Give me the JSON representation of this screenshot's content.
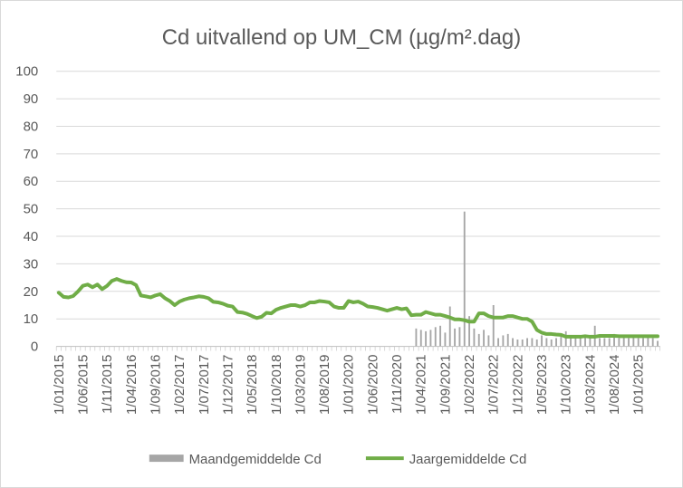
{
  "chart_data": {
    "type": "bar+line",
    "title": "Cd uitvallend op UM_CM (µg/m².dag)",
    "xlabel": "",
    "ylabel": "",
    "ylim": [
      0,
      100
    ],
    "yticks": [
      "0",
      "10",
      "20",
      "30",
      "40",
      "50",
      "60",
      "70",
      "80",
      "90",
      "100"
    ],
    "grid": true,
    "legend_position": "bottom",
    "x_start": "2015-01",
    "x_end": "2025-05",
    "x_tick_labels": [
      "1/01/2015",
      "1/06/2015",
      "1/11/2015",
      "1/04/2016",
      "1/09/2016",
      "1/02/2017",
      "1/07/2017",
      "1/12/2017",
      "1/05/2018",
      "1/10/2018",
      "1/03/2019",
      "1/08/2019",
      "1/01/2020",
      "1/06/2020",
      "1/11/2020",
      "1/04/2021",
      "1/09/2021",
      "1/02/2022",
      "1/07/2022",
      "1/12/2022",
      "1/05/2023",
      "1/10/2023",
      "1/03/2024",
      "1/08/2024",
      "1/01/2025"
    ],
    "series": [
      {
        "name": "Maandgemiddelde Cd",
        "type": "bar",
        "color": "#a6a6a6",
        "points": [
          [
            "2021-03",
            6.5
          ],
          [
            "2021-04",
            6
          ],
          [
            "2021-05",
            5.5
          ],
          [
            "2021-06",
            6
          ],
          [
            "2021-07",
            7
          ],
          [
            "2021-08",
            7.5
          ],
          [
            "2021-09",
            5
          ],
          [
            "2021-10",
            14.5
          ],
          [
            "2021-11",
            6.5
          ],
          [
            "2021-12",
            7
          ],
          [
            "2022-01",
            49
          ],
          [
            "2022-02",
            11
          ],
          [
            "2022-03",
            6.5
          ],
          [
            "2022-04",
            4.5
          ],
          [
            "2022-05",
            6
          ],
          [
            "2022-06",
            4
          ],
          [
            "2022-07",
            15
          ],
          [
            "2022-08",
            3
          ],
          [
            "2022-09",
            4
          ],
          [
            "2022-10",
            4.5
          ],
          [
            "2022-11",
            3
          ],
          [
            "2022-12",
            2.5
          ],
          [
            "2023-01",
            2.5
          ],
          [
            "2023-02",
            3
          ],
          [
            "2023-03",
            3
          ],
          [
            "2023-04",
            2.5
          ],
          [
            "2023-05",
            4
          ],
          [
            "2023-06",
            3
          ],
          [
            "2023-07",
            2.5
          ],
          [
            "2023-08",
            3
          ],
          [
            "2023-09",
            4
          ],
          [
            "2023-10",
            5.5
          ],
          [
            "2023-11",
            3
          ],
          [
            "2023-12",
            3
          ],
          [
            "2024-01",
            3
          ],
          [
            "2024-02",
            4
          ],
          [
            "2024-03",
            3
          ],
          [
            "2024-04",
            7.5
          ],
          [
            "2024-05",
            3
          ],
          [
            "2024-06",
            3
          ],
          [
            "2024-07",
            3
          ],
          [
            "2024-08",
            4.5
          ],
          [
            "2024-09",
            3
          ],
          [
            "2024-10",
            4
          ],
          [
            "2024-11",
            3
          ],
          [
            "2024-12",
            4
          ],
          [
            "2025-01",
            3
          ],
          [
            "2025-02",
            3
          ],
          [
            "2025-03",
            3.5
          ],
          [
            "2025-04",
            3
          ],
          [
            "2025-05",
            2
          ]
        ]
      },
      {
        "name": "Jaargemiddelde Cd",
        "type": "line",
        "color": "#70ad47",
        "points": [
          [
            "2015-01",
            19.5
          ],
          [
            "2015-02",
            18
          ],
          [
            "2015-03",
            17.8
          ],
          [
            "2015-04",
            18.3
          ],
          [
            "2015-05",
            20
          ],
          [
            "2015-06",
            22
          ],
          [
            "2015-07",
            22.5
          ],
          [
            "2015-08",
            21.5
          ],
          [
            "2015-09",
            22.5
          ],
          [
            "2015-10",
            20.8
          ],
          [
            "2015-11",
            22
          ],
          [
            "2015-12",
            23.8
          ],
          [
            "2016-01",
            24.5
          ],
          [
            "2016-02",
            23.8
          ],
          [
            "2016-03",
            23.3
          ],
          [
            "2016-04",
            23.2
          ],
          [
            "2016-05",
            22.3
          ],
          [
            "2016-06",
            18.5
          ],
          [
            "2016-07",
            18.2
          ],
          [
            "2016-08",
            17.8
          ],
          [
            "2016-09",
            18.5
          ],
          [
            "2016-10",
            19
          ],
          [
            "2016-11",
            17.5
          ],
          [
            "2016-12",
            16.5
          ],
          [
            "2017-01",
            15
          ],
          [
            "2017-02",
            16.3
          ],
          [
            "2017-03",
            17
          ],
          [
            "2017-04",
            17.5
          ],
          [
            "2017-05",
            17.8
          ],
          [
            "2017-06",
            18.2
          ],
          [
            "2017-07",
            18
          ],
          [
            "2017-08",
            17.5
          ],
          [
            "2017-09",
            16.2
          ],
          [
            "2017-10",
            16
          ],
          [
            "2017-11",
            15.5
          ],
          [
            "2017-12",
            14.8
          ],
          [
            "2018-01",
            14.5
          ],
          [
            "2018-02",
            12.5
          ],
          [
            "2018-03",
            12.3
          ],
          [
            "2018-04",
            11.8
          ],
          [
            "2018-05",
            11
          ],
          [
            "2018-06",
            10.3
          ],
          [
            "2018-07",
            10.8
          ],
          [
            "2018-08",
            12.2
          ],
          [
            "2018-09",
            12
          ],
          [
            "2018-10",
            13.3
          ],
          [
            "2018-11",
            14
          ],
          [
            "2018-12",
            14.5
          ],
          [
            "2019-01",
            15
          ],
          [
            "2019-02",
            15
          ],
          [
            "2019-03",
            14.5
          ],
          [
            "2019-04",
            15
          ],
          [
            "2019-05",
            16
          ],
          [
            "2019-06",
            16
          ],
          [
            "2019-07",
            16.5
          ],
          [
            "2019-08",
            16.3
          ],
          [
            "2019-09",
            16
          ],
          [
            "2019-10",
            14.5
          ],
          [
            "2019-11",
            14
          ],
          [
            "2019-12",
            14
          ],
          [
            "2020-01",
            16.5
          ],
          [
            "2020-02",
            16
          ],
          [
            "2020-03",
            16.3
          ],
          [
            "2020-04",
            15.5
          ],
          [
            "2020-05",
            14.5
          ],
          [
            "2020-06",
            14.3
          ],
          [
            "2020-07",
            14
          ],
          [
            "2020-08",
            13.5
          ],
          [
            "2020-09",
            13
          ],
          [
            "2020-10",
            13.5
          ],
          [
            "2020-11",
            14
          ],
          [
            "2020-12",
            13.5
          ],
          [
            "2021-01",
            13.8
          ],
          [
            "2021-02",
            11.3
          ],
          [
            "2021-03",
            11.5
          ],
          [
            "2021-04",
            11.5
          ],
          [
            "2021-05",
            12.5
          ],
          [
            "2021-06",
            12
          ],
          [
            "2021-07",
            11.5
          ],
          [
            "2021-08",
            11.5
          ],
          [
            "2021-09",
            11
          ],
          [
            "2021-10",
            10.5
          ],
          [
            "2021-11",
            9.8
          ],
          [
            "2021-12",
            9.8
          ],
          [
            "2022-01",
            9.5
          ],
          [
            "2022-02",
            9
          ],
          [
            "2022-03",
            9
          ],
          [
            "2022-04",
            12
          ],
          [
            "2022-05",
            12
          ],
          [
            "2022-06",
            11
          ],
          [
            "2022-07",
            10.5
          ],
          [
            "2022-08",
            10.5
          ],
          [
            "2022-09",
            10.5
          ],
          [
            "2022-10",
            11
          ],
          [
            "2022-11",
            11
          ],
          [
            "2022-12",
            10.5
          ],
          [
            "2023-01",
            10
          ],
          [
            "2023-02",
            10
          ],
          [
            "2023-03",
            9
          ],
          [
            "2023-04",
            6
          ],
          [
            "2023-05",
            5
          ],
          [
            "2023-06",
            4.5
          ],
          [
            "2023-07",
            4.5
          ],
          [
            "2023-08",
            4.3
          ],
          [
            "2023-09",
            4.2
          ],
          [
            "2023-10",
            3.5
          ],
          [
            "2023-11",
            3.5
          ],
          [
            "2023-12",
            3.5
          ],
          [
            "2024-01",
            3.5
          ],
          [
            "2024-02",
            3.7
          ],
          [
            "2024-03",
            3.5
          ],
          [
            "2024-04",
            3.5
          ],
          [
            "2024-05",
            3.8
          ],
          [
            "2024-06",
            3.8
          ],
          [
            "2024-07",
            3.8
          ],
          [
            "2024-08",
            3.8
          ],
          [
            "2024-09",
            3.7
          ],
          [
            "2024-10",
            3.7
          ],
          [
            "2024-11",
            3.7
          ],
          [
            "2024-12",
            3.7
          ],
          [
            "2025-01",
            3.7
          ],
          [
            "2025-02",
            3.7
          ],
          [
            "2025-03",
            3.7
          ],
          [
            "2025-04",
            3.7
          ],
          [
            "2025-05",
            3.7
          ]
        ]
      }
    ]
  }
}
